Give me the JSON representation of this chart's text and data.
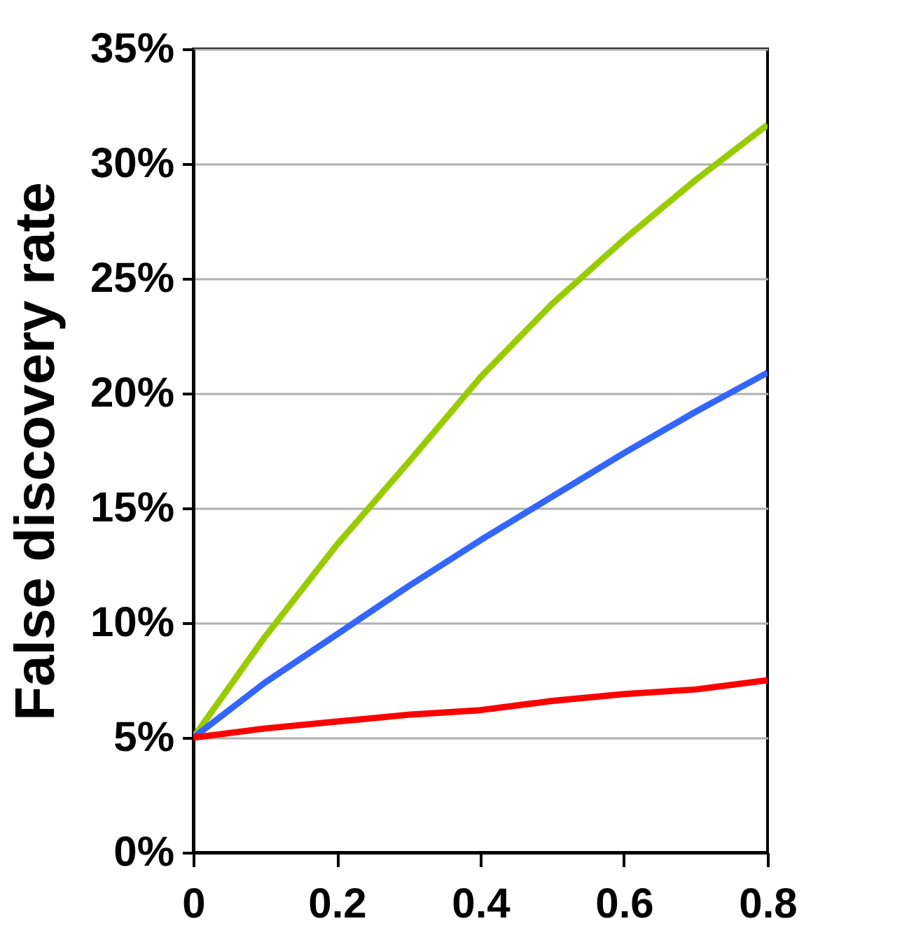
{
  "chart_data": {
    "type": "line",
    "ylabel": "False discovery rate",
    "x": [
      0,
      0.1,
      0.2,
      0.3,
      0.4,
      0.5,
      0.6,
      0.7,
      0.8
    ],
    "series": [
      {
        "color": "#99cc00",
        "values": [
          5,
          9.4,
          13.4,
          17.0,
          20.7,
          23.9,
          26.7,
          29.3,
          31.7
        ]
      },
      {
        "color": "#3366ff",
        "values": [
          5,
          7.4,
          9.5,
          11.6,
          13.6,
          15.5,
          17.4,
          19.2,
          20.9
        ]
      },
      {
        "color": "#ff0000",
        "values": [
          5,
          5.4,
          5.7,
          6.0,
          6.2,
          6.6,
          6.9,
          7.1,
          7.5
        ]
      }
    ],
    "xlim": [
      0,
      0.8
    ],
    "xticks": [
      0,
      0.2,
      0.4,
      0.6,
      0.8
    ],
    "ylim": [
      0,
      35
    ],
    "yticks": [
      {
        "value": 0,
        "label": "0%"
      },
      {
        "value": 5,
        "label": "5%"
      },
      {
        "value": 10,
        "label": "10%"
      },
      {
        "value": 15,
        "label": "15%"
      },
      {
        "value": 20,
        "label": "20%"
      },
      {
        "value": 25,
        "label": "25%"
      },
      {
        "value": 30,
        "label": "30%"
      },
      {
        "value": 35,
        "label": "35%"
      }
    ],
    "grid": "y",
    "legend": false,
    "marker": "none",
    "line_style": "solid"
  }
}
